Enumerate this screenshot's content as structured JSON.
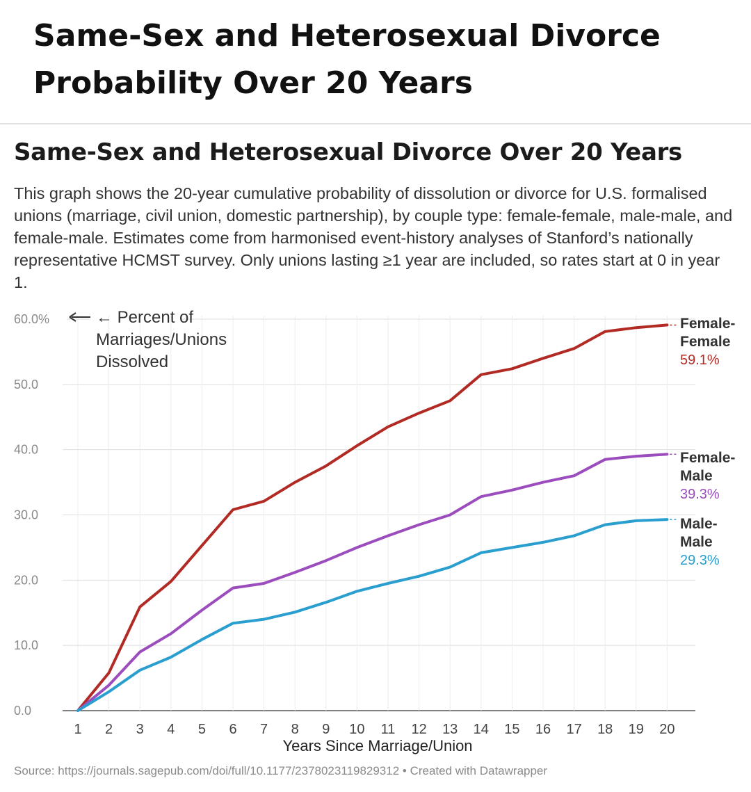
{
  "page": {
    "title": "Same-Sex and Heterosexual Divorce Probability Over 20 Years"
  },
  "chart_data": {
    "type": "line",
    "title": "Same-Sex and Heterosexual Divorce Over 20 Years",
    "description": "This graph shows the 20-year cumulative probability of dissolution or divorce for U.S. formalised unions (marriage, civil union, domestic partnership), by couple type: female-female, male-male, and female-male. Estimates come from harmonised event-history analyses of Stanford’s nationally representative HCMST survey. Only unions lasting ≥1 year are included, so rates start at 0 in year 1.",
    "xlabel": "Years Since Marriage/Union",
    "ylabel_annotation": [
      "← Percent of",
      "Marriages/Unions",
      "Dissolved"
    ],
    "x": [
      1,
      2,
      3,
      4,
      5,
      6,
      7,
      8,
      9,
      10,
      11,
      12,
      13,
      14,
      15,
      16,
      17,
      18,
      19,
      20
    ],
    "ylim": [
      0,
      60
    ],
    "yticks": [
      {
        "value": 0,
        "label": "0.0"
      },
      {
        "value": 10,
        "label": "10.0"
      },
      {
        "value": 20,
        "label": "20.0"
      },
      {
        "value": 30,
        "label": "30.0"
      },
      {
        "value": 40,
        "label": "40.0"
      },
      {
        "value": 50,
        "label": "50.0"
      },
      {
        "value": 60,
        "label": "60.0%"
      }
    ],
    "grid": true,
    "series": [
      {
        "name": "Female-Female",
        "label_lines": [
          "Female-",
          "Female"
        ],
        "end_label": "59.1%",
        "color": "#b22a24",
        "values": [
          0,
          5.8,
          15.9,
          19.8,
          25.3,
          30.8,
          32.1,
          35.0,
          37.5,
          40.6,
          43.5,
          45.6,
          47.5,
          51.5,
          52.4,
          54.0,
          55.5,
          58.1,
          58.7,
          59.1
        ]
      },
      {
        "name": "Female-Male",
        "label_lines": [
          "Female-",
          "Male"
        ],
        "end_label": "39.3%",
        "color": "#9c4dbd",
        "values": [
          0,
          3.9,
          9.0,
          11.8,
          15.4,
          18.8,
          19.5,
          21.2,
          23.0,
          25.0,
          26.8,
          28.5,
          30.0,
          32.8,
          33.8,
          35.0,
          36.0,
          38.5,
          39.0,
          39.3
        ]
      },
      {
        "name": "Male-Male",
        "label_lines": [
          "Male-",
          "Male"
        ],
        "end_label": "29.3%",
        "color": "#2a9fcf",
        "values": [
          0,
          2.9,
          6.2,
          8.2,
          10.9,
          13.4,
          14.0,
          15.1,
          16.6,
          18.3,
          19.5,
          20.6,
          22.0,
          24.2,
          25.0,
          25.8,
          26.8,
          28.5,
          29.1,
          29.3
        ]
      }
    ],
    "source": "Source: https://journals.sagepub.com/doi/full/10.1177/2378023119829312 • Created with Datawrapper"
  }
}
